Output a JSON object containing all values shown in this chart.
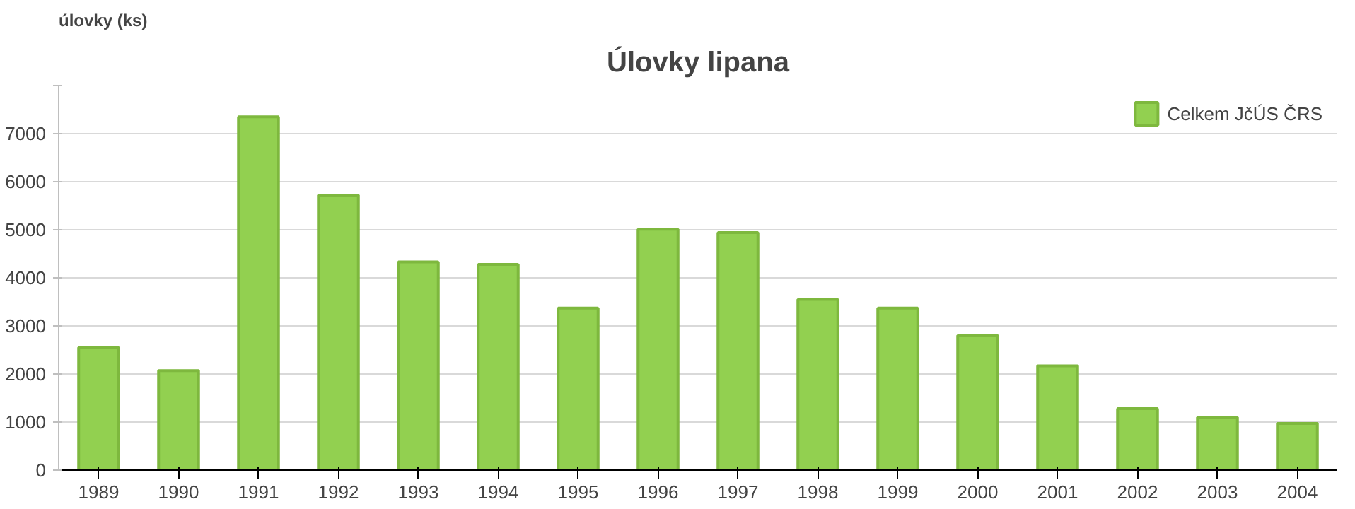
{
  "chart_data": {
    "type": "bar",
    "title": "Úlovky lipana",
    "ylabel": "úlovky (ks)",
    "categories": [
      "1989",
      "1990",
      "1991",
      "1992",
      "1993",
      "1994",
      "1995",
      "1996",
      "1997",
      "1998",
      "1999",
      "2000",
      "2001",
      "2002",
      "2003",
      "2004"
    ],
    "series": [
      {
        "name": "Celkem JčÚS ČRS",
        "color": "#92d050",
        "values": [
          2550,
          2070,
          7350,
          5720,
          4330,
          4280,
          3370,
          5010,
          4940,
          3550,
          3370,
          2800,
          2170,
          1280,
          1100,
          970
        ]
      }
    ],
    "ylim": [
      0,
      8000
    ],
    "yticks": [
      0,
      1000,
      2000,
      3000,
      4000,
      5000,
      6000,
      7000,
      {
        "value": 8000,
        "label": null
      }
    ],
    "grid": "y",
    "legend": "top right"
  }
}
